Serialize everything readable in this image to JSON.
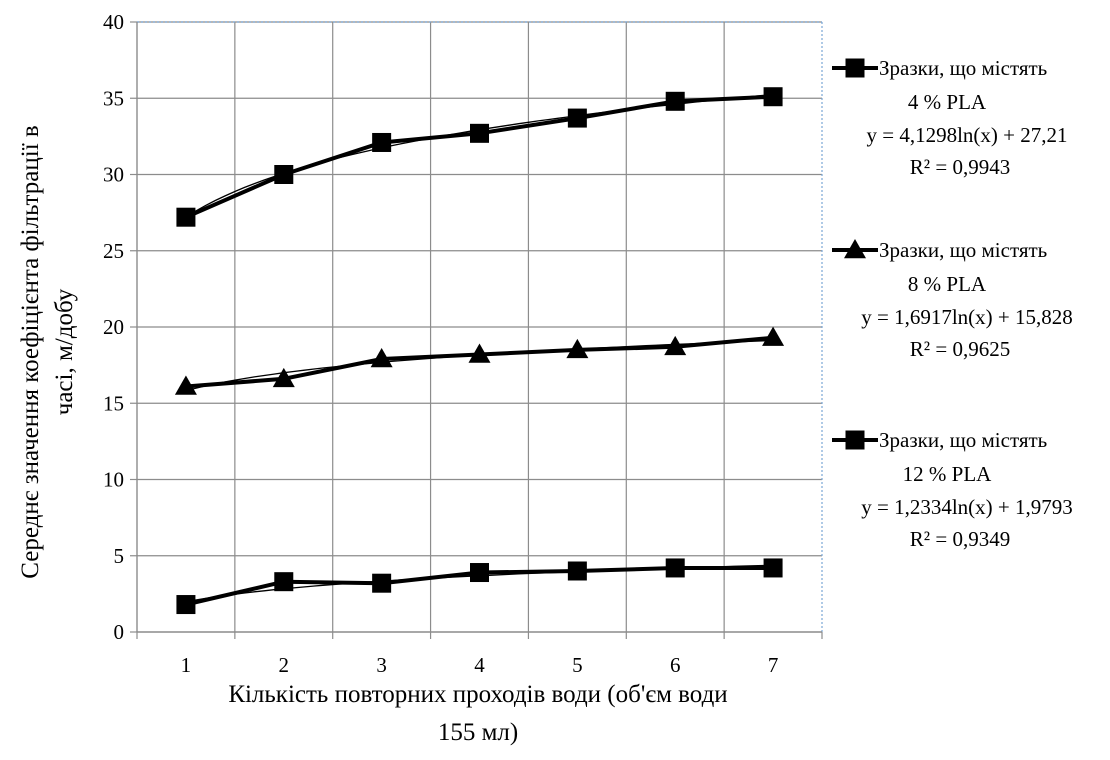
{
  "chart_data": {
    "type": "line",
    "title": "",
    "xlabel_line1": "Кількість повторних проходів води (об'єм води",
    "xlabel_line2": "155 мл)",
    "ylabel_line1": "Середнє значення коефіцієнта фільтрації в",
    "ylabel_line2": "часі, м/добу",
    "categories": [
      "1",
      "2",
      "3",
      "4",
      "5",
      "6",
      "7"
    ],
    "ylim": [
      0,
      40
    ],
    "yticks": [
      "0",
      "5",
      "10",
      "15",
      "20",
      "25",
      "30",
      "35",
      "40"
    ],
    "grid": true,
    "legend_position": "right",
    "series": [
      {
        "name_line1": "Зразки, що містять",
        "name_line2": "4 % PLA",
        "marker": "square",
        "values": [
          27.2,
          30.0,
          32.1,
          32.7,
          33.7,
          34.8,
          35.1
        ],
        "trend_coef": [
          4.1298,
          27.21
        ],
        "equation": "y = 4,1298ln(x) + 27,21",
        "r2": "R² = 0,9943"
      },
      {
        "name_line1": "Зразки, що містять",
        "name_line2": "8 % PLA",
        "marker": "triangle",
        "values": [
          16.1,
          16.6,
          17.9,
          18.2,
          18.5,
          18.7,
          19.3
        ],
        "trend_coef": [
          1.6917,
          15.828
        ],
        "equation": "y = 1,6917ln(x) + 15,828",
        "r2": "R² = 0,9625"
      },
      {
        "name_line1": "Зразки, що містять",
        "name_line2": "12 % PLA",
        "marker": "square",
        "values": [
          1.8,
          3.3,
          3.2,
          3.9,
          4.0,
          4.2,
          4.2
        ],
        "trend_coef": [
          1.2334,
          1.9793
        ],
        "equation": "y = 1,2334ln(x) + 1,9793",
        "r2": "R² = 0,9349"
      }
    ]
  }
}
